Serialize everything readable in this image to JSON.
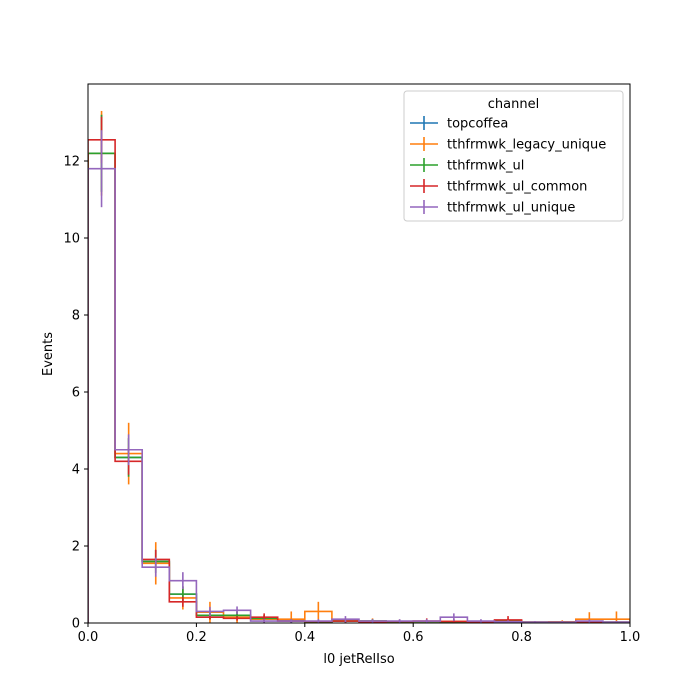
{
  "chart_data": {
    "type": "histogram",
    "xlabel": "l0 jetRelIso",
    "ylabel": "Events",
    "xlim": [
      0,
      1
    ],
    "ylim": [
      0,
      14
    ],
    "xticks": [
      "0.0",
      "0.2",
      "0.4",
      "0.6",
      "0.8",
      "1.0"
    ],
    "yticks": [
      "0",
      "2",
      "4",
      "6",
      "8",
      "10",
      "12"
    ],
    "legend": {
      "title": "channel",
      "placement": "top-right"
    },
    "bin_edges": [
      0,
      0.05,
      0.1,
      0.15,
      0.2,
      0.25,
      0.3,
      0.35,
      0.4,
      0.45,
      0.5,
      0.55,
      0.6,
      0.65,
      0.7,
      0.75,
      0.8,
      0.85,
      0.9,
      0.95,
      1.0
    ],
    "series": [
      {
        "name": "topcoffea",
        "color": "#1f77b4",
        "values": [
          12.2,
          4.3,
          1.6,
          0.75,
          0.2,
          0.2,
          0.12,
          0.05,
          0.03,
          0.05,
          0.05,
          0.03,
          0.04,
          0.03,
          0.02,
          0.05,
          0.02,
          0.02,
          0.02,
          0.02
        ],
        "errors": [
          1.0,
          0.5,
          0.3,
          0.2,
          0.1,
          0.1,
          0.08,
          0.05,
          0.04,
          0.05,
          0.05,
          0.04,
          0.04,
          0.04,
          0.03,
          0.05,
          0.03,
          0.03,
          0.03,
          0.03
        ]
      },
      {
        "name": "tthfrmwk_legacy_unique",
        "color": "#ff7f0e",
        "values": [
          12.2,
          4.4,
          1.55,
          0.65,
          0.28,
          0.15,
          0.1,
          0.1,
          0.3,
          0.05,
          0.05,
          0.04,
          0.04,
          0.04,
          0.03,
          0.05,
          0.02,
          0.03,
          0.1,
          0.1
        ],
        "errors": [
          1.1,
          0.8,
          0.55,
          0.3,
          0.27,
          0.15,
          0.1,
          0.2,
          0.25,
          0.07,
          0.07,
          0.05,
          0.05,
          0.05,
          0.04,
          0.07,
          0.03,
          0.04,
          0.18,
          0.2
        ]
      },
      {
        "name": "tthfrmwk_ul",
        "color": "#2ca02c",
        "values": [
          12.2,
          4.3,
          1.6,
          0.75,
          0.2,
          0.2,
          0.12,
          0.05,
          0.03,
          0.05,
          0.05,
          0.03,
          0.04,
          0.03,
          0.02,
          0.05,
          0.02,
          0.02,
          0.02,
          0.02
        ],
        "errors": [
          1.0,
          0.5,
          0.3,
          0.2,
          0.1,
          0.1,
          0.08,
          0.05,
          0.04,
          0.05,
          0.05,
          0.04,
          0.04,
          0.04,
          0.03,
          0.05,
          0.03,
          0.03,
          0.03,
          0.03
        ]
      },
      {
        "name": "tthfrmwk_ul_common",
        "color": "#d62728",
        "values": [
          12.55,
          4.2,
          1.65,
          0.55,
          0.15,
          0.12,
          0.15,
          0.05,
          0.04,
          0.05,
          0.03,
          0.04,
          0.05,
          0.04,
          0.03,
          0.08,
          0.02,
          0.02,
          0.02,
          0.02
        ],
        "errors": [
          0.6,
          0.35,
          0.25,
          0.13,
          0.06,
          0.06,
          0.1,
          0.04,
          0.03,
          0.04,
          0.03,
          0.04,
          0.07,
          0.06,
          0.03,
          0.1,
          0.03,
          0.03,
          0.03,
          0.03
        ]
      },
      {
        "name": "tthfrmwk_ul_unique",
        "color": "#9467bd",
        "values": [
          11.8,
          4.5,
          1.45,
          1.1,
          0.3,
          0.33,
          0.05,
          0.05,
          0.05,
          0.1,
          0.05,
          0.05,
          0.05,
          0.15,
          0.05,
          0.03,
          0.02,
          0.02,
          0.05,
          0.02
        ],
        "errors": [
          1.0,
          0.4,
          0.25,
          0.22,
          0.12,
          0.1,
          0.05,
          0.05,
          0.05,
          0.08,
          0.05,
          0.05,
          0.05,
          0.1,
          0.05,
          0.04,
          0.03,
          0.03,
          0.05,
          0.03
        ]
      }
    ]
  }
}
